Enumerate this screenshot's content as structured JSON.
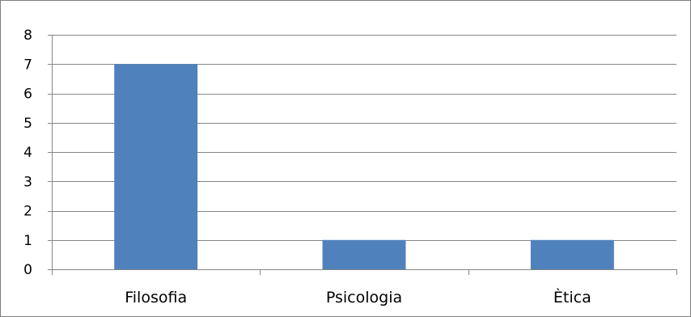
{
  "chart_data": {
    "type": "bar",
    "title": "",
    "xlabel": "",
    "ylabel": "",
    "categories": [
      "Filosofia",
      "Psicologia",
      "Ètica"
    ],
    "series": [
      {
        "values": [
          7,
          1,
          1
        ]
      }
    ],
    "ylim": [
      0,
      8
    ],
    "yticks": [
      0,
      1,
      2,
      3,
      4,
      5,
      6,
      7,
      8
    ],
    "grid": true,
    "legend": "none",
    "colors": {
      "bar": "#4f81bd",
      "grid": "#868686",
      "axis": "#868686",
      "border": "#7f7f7f"
    }
  }
}
